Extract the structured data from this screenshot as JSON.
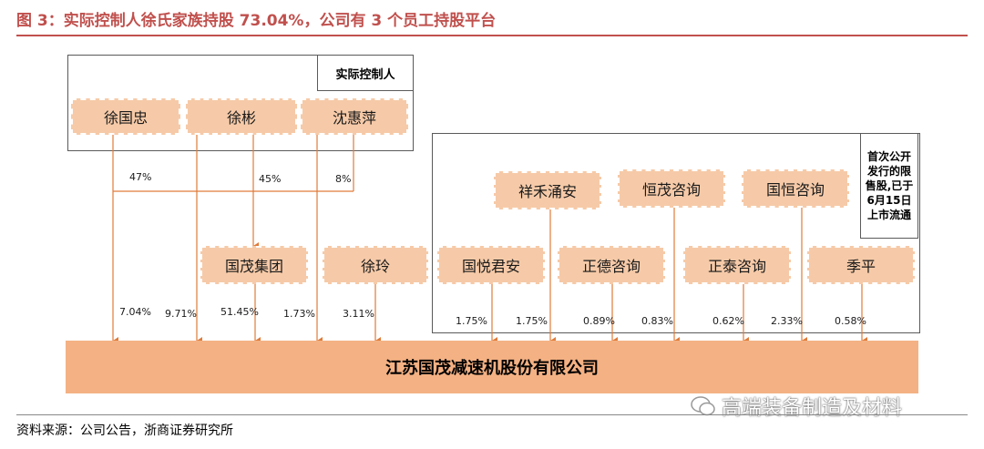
{
  "title": "图 3：实际控制人徐氏家族持股 73.04%，公司有 3 个员工持股平台",
  "controller_label": "实际控制人",
  "restricted_label": "首次公开发行的限售股,已于6月15日上市流通",
  "controllers": [
    "徐国忠",
    "徐彬",
    "沈惠萍"
  ],
  "controller_pcts": [
    "47%",
    "45%",
    "8%"
  ],
  "group": "国茂集团",
  "xuling": "徐玲",
  "restricted": [
    "祥禾涌安",
    "恒茂咨询",
    "国恒咨询"
  ],
  "others": [
    "国悦君安",
    "正德咨询",
    "正泰咨询",
    "季平"
  ],
  "company": "江苏国茂减速机股份有限公司",
  "holdings": [
    "7.04%",
    "9.71%",
    "51.45%",
    "1.73%",
    "3.11%",
    "1.75%",
    "1.75%",
    "0.89%",
    "0.83%",
    "0.62%",
    "2.33%",
    "0.58%"
  ],
  "source": "资料来源：公司公告，浙商证券研究所",
  "watermark": "高端装备制造及材料",
  "colors": {
    "accent": "#c0504d",
    "node": "#f6caa8",
    "company": "#f4b183",
    "line": "#e07b39"
  }
}
